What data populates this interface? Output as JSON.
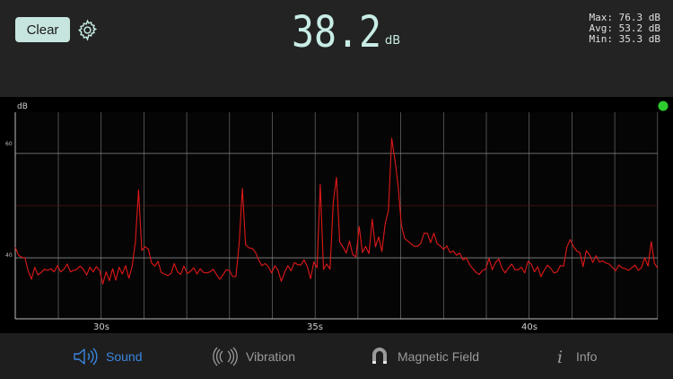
{
  "header": {
    "clear_label": "Clear",
    "reading": "38.2",
    "unit": "dB",
    "stats": {
      "max": "Max: 76.3 dB",
      "avg": "Avg: 53.2 dB",
      "min": "Min: 35.3 dB"
    }
  },
  "chart_data": {
    "type": "line",
    "ylabel": "dB",
    "x_ticks": [
      "30s",
      "35s",
      "40s"
    ],
    "y_ticks": [
      "40",
      "60"
    ],
    "grid": true,
    "status_color": "#2ecc2e",
    "line_color": "#e01818",
    "series": [
      {
        "values": [
          42,
          40.5,
          40.1,
          40,
          37.4,
          35.9,
          38.2,
          36.7,
          37.2,
          37.8,
          37.6,
          37.9,
          37.3,
          38.5,
          37.3,
          37.8,
          38.8,
          37.3,
          37.6,
          37.8,
          38.4,
          37.8,
          36.7,
          38.2,
          37.3,
          38.3,
          37.6,
          35,
          37.3,
          35.6,
          37.9,
          35.7,
          38.2,
          36.9,
          38.5,
          36.1,
          38.3,
          42.9,
          53,
          41.4,
          42.1,
          41.7,
          39,
          38.4,
          39.3,
          37.2,
          36.9,
          36.6,
          37,
          38.9,
          37.3,
          36.8,
          38.4,
          37,
          37.4,
          38.1,
          36.9,
          37.9,
          37.2,
          37.1,
          37.3,
          37.8,
          36.8,
          35.9,
          36.7,
          37.7,
          37.6,
          36.4,
          36.4,
          42.7,
          53.3,
          42.5,
          41.9,
          41.8,
          41.1,
          39.6,
          38.5,
          38.9,
          38.3,
          37.1,
          38.5,
          37.6,
          35.5,
          37.2,
          38.5,
          37.5,
          39.1,
          38.7,
          38.6,
          39.6,
          38.3,
          36,
          39.2,
          38.1,
          54.1,
          37.8,
          38.8,
          37.8,
          50.7,
          55.4,
          43,
          42.1,
          40.9,
          43.2,
          40.6,
          40.2,
          46,
          41,
          42.2,
          40.8,
          47.4,
          42.1,
          44,
          41.2,
          46.5,
          49.1,
          62.9,
          58.8,
          53.8,
          46.3,
          43.7,
          43.2,
          42.7,
          42.2,
          42.2,
          42.8,
          44.7,
          44.7,
          42.9,
          44.7,
          42.7,
          42.3,
          41.6,
          42.3,
          41,
          41.3,
          40.5,
          40.9,
          39.6,
          40,
          38.7,
          37.9,
          37.2,
          36.8,
          37.6,
          37.8,
          39.9,
          37.7,
          39.1,
          39.8,
          38,
          37.1,
          38.1,
          38.8,
          37.7,
          37.7,
          38.2,
          37.1,
          39.3,
          38.8,
          37.3,
          38.3,
          36.4,
          37.6,
          38.6,
          38,
          37.1,
          37.3,
          38.5,
          38.4,
          42,
          43.5,
          42.2,
          41.3,
          41,
          38.3,
          41.4,
          40.5,
          39.1,
          40.4,
          39.2,
          39.4,
          39,
          38.8,
          38.2,
          37.5,
          38.6,
          38.1,
          37.9,
          37.6,
          38.1,
          38.6,
          37.6,
          38.1,
          40,
          38.4,
          43.1,
          38.9,
          38
        ]
      }
    ]
  },
  "tabs": [
    {
      "label": "Sound",
      "icon": "speaker-icon",
      "active": true
    },
    {
      "label": "Vibration",
      "icon": "vibration-icon",
      "active": false
    },
    {
      "label": "Magnetic Field",
      "icon": "magnet-icon",
      "active": false
    },
    {
      "label": "Info",
      "icon": "info-icon",
      "active": false
    }
  ],
  "colors": {
    "accent": "#3a86e0",
    "display": "#c8ede6",
    "button_bg": "#c7e5df"
  }
}
